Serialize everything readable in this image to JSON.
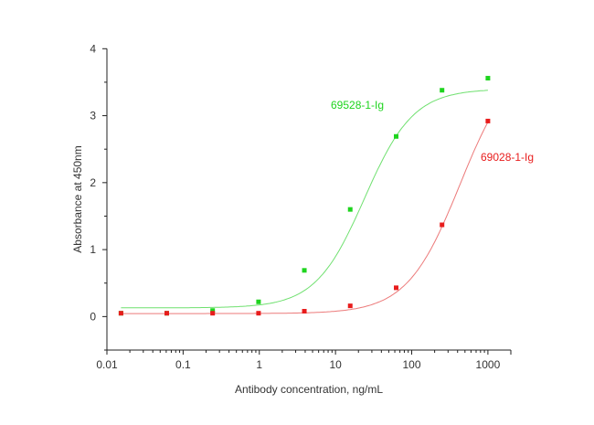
{
  "chart_data": {
    "type": "scatter",
    "title": "",
    "xlabel": "Antibody concentration, ng/mL",
    "ylabel": "Absorbance at 450nm",
    "xscale": "log",
    "xlim": [
      0.01,
      2000
    ],
    "ylim": [
      -0.5,
      4
    ],
    "x_ticks": [
      "0.01",
      "0.1",
      "1",
      "10",
      "100",
      "1000"
    ],
    "y_ticks": [
      "0",
      "1",
      "2",
      "3",
      "4"
    ],
    "grid": false,
    "legend": "none (series labels placed next to curves)",
    "x": [
      0.0153,
      0.061,
      0.244,
      0.977,
      3.9,
      15.6,
      62.5,
      250,
      1000
    ],
    "series": [
      {
        "name": "69528-1-Ig",
        "color": "#1ed41e",
        "curve_color": "#6fe06f",
        "values": [
          0.05,
          0.05,
          0.09,
          0.22,
          0.69,
          1.6,
          2.69,
          3.38,
          3.56
        ]
      },
      {
        "name": "69028-1-Ig",
        "color": "#e81c1c",
        "curve_color": "#ec7a7a",
        "values": [
          0.05,
          0.05,
          0.05,
          0.05,
          0.08,
          0.16,
          0.43,
          1.37,
          2.92
        ]
      }
    ]
  }
}
